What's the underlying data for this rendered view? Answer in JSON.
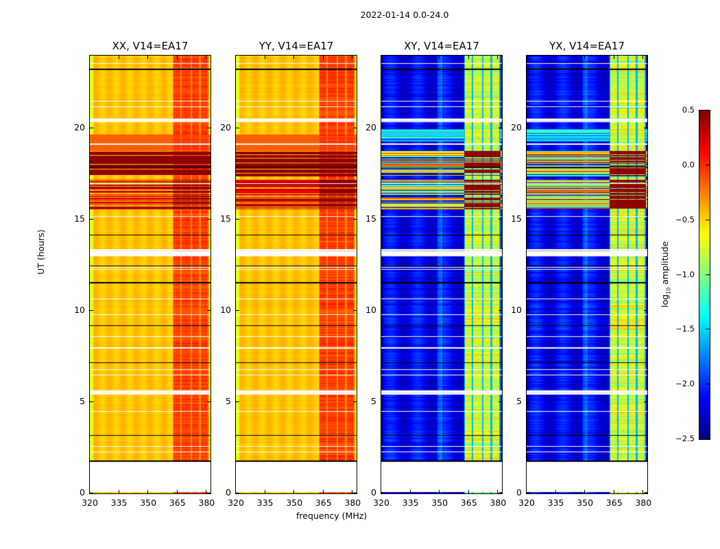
{
  "chart_data": {
    "type": "heatmap",
    "title": "2022-01-14 0.0-24.0",
    "xlabel": "frequency (MHz)",
    "ylabel": "UT (hours)",
    "xlim": [
      320,
      382
    ],
    "ylim": [
      0,
      24
    ],
    "xticks": [
      320,
      335,
      350,
      365,
      380
    ],
    "yticks": [
      0,
      5,
      10,
      15,
      20
    ],
    "panels": [
      {
        "name": "XX",
        "title": "XX, V14=EA17",
        "kind": "parallel"
      },
      {
        "name": "YY",
        "title": "YY, V14=EA17",
        "kind": "parallel"
      },
      {
        "name": "XY",
        "title": "XY, V14=EA17",
        "kind": "cross"
      },
      {
        "name": "YX",
        "title": "YX, V14=EA17",
        "kind": "cross"
      }
    ],
    "colorbar": {
      "label_prefix": "log",
      "label_sub": "10",
      "label_suffix": " amplitude",
      "colormap": "jet",
      "range": [
        -2.5,
        0.5
      ],
      "ticks": [
        "0.5",
        "0.0",
        "−0.5",
        "−1.0",
        "−1.5",
        "−2.0",
        "−2.5"
      ],
      "tick_values": [
        0.5,
        0.0,
        -0.5,
        -1.0,
        -1.5,
        -2.0,
        -2.5
      ]
    },
    "features": {
      "no_data_hours": [
        0.1,
        1.75
      ],
      "rfi_band_mhz": [
        362.5,
        381
      ],
      "high_amplitude_hours": [
        [
          15.6,
          17.2
        ],
        [
          17.4,
          18.8
        ]
      ],
      "flagged_rows_hours": [
        1.8,
        2.3,
        2.6,
        3.2,
        4.5,
        5.5,
        5.6,
        6.5,
        6.8,
        7.2,
        8.0,
        8.6,
        9.2,
        9.8,
        10.7,
        11.6,
        12.3,
        12.4,
        12.5,
        13.1,
        13.4,
        14.2,
        15.2,
        17.0,
        17.9,
        19.2,
        20.4,
        20.5,
        21.2,
        21.5,
        23.3,
        23.6
      ]
    }
  }
}
